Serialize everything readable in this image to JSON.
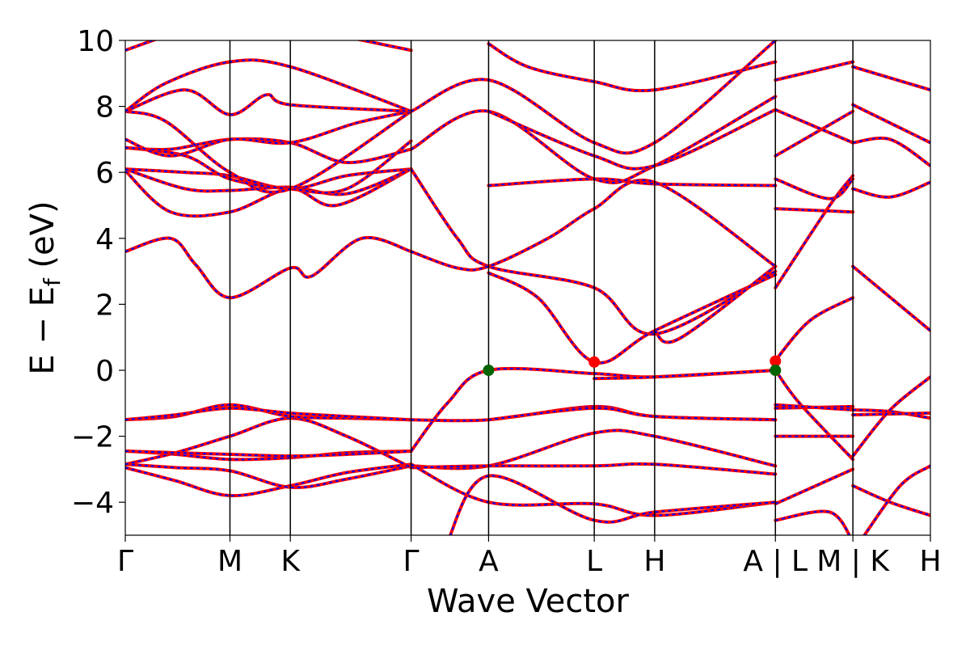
{
  "chart_data": {
    "type": "line",
    "xlabel": "Wave Vector",
    "ylabel_main": "E − E",
    "ylabel_sub": "f",
    "ylabel_unit": " (eV)",
    "ylim": [
      -5,
      10
    ],
    "xlim": [
      0,
      8.0
    ],
    "grid": false,
    "y_ticks": [
      {
        "v": -4,
        "label": "−4"
      },
      {
        "v": -2,
        "label": "−2"
      },
      {
        "v": 0,
        "label": "0"
      },
      {
        "v": 2,
        "label": "2"
      },
      {
        "v": 4,
        "label": "4"
      },
      {
        "v": 6,
        "label": "6"
      },
      {
        "v": 8,
        "label": "8"
      },
      {
        "v": 10,
        "label": "10"
      }
    ],
    "k_points": [
      {
        "x": 0.0,
        "label": "Γ"
      },
      {
        "x": 1.04,
        "label": "M"
      },
      {
        "x": 1.64,
        "label": "K"
      },
      {
        "x": 2.84,
        "label": "Γ"
      },
      {
        "x": 3.61,
        "label": "A"
      },
      {
        "x": 4.66,
        "label": "L"
      },
      {
        "x": 5.26,
        "label": "H"
      },
      {
        "x": 6.46,
        "label": "A | L"
      },
      {
        "x": 7.23,
        "label": "M | K"
      },
      {
        "x": 8.0,
        "label": "H"
      }
    ],
    "series_colors": {
      "solid": "#ff0000",
      "dashed": "#0000ff"
    },
    "series": [
      {
        "points": [
          [
            0,
            -2.95
          ],
          [
            0.5,
            -3.35
          ],
          [
            1.04,
            -3.8
          ],
          [
            1.64,
            -3.5
          ],
          [
            2.2,
            -3.1
          ],
          [
            2.84,
            -2.85
          ]
        ]
      },
      {
        "points": [
          [
            0,
            -2.85
          ],
          [
            0.5,
            -2.95
          ],
          [
            1.04,
            -3.05
          ],
          [
            1.64,
            -3.55
          ],
          [
            2.2,
            -3.3
          ],
          [
            2.84,
            -2.9
          ]
        ]
      },
      {
        "points": [
          [
            0,
            -2.85
          ],
          [
            0.5,
            -2.5
          ],
          [
            1.04,
            -2.0
          ],
          [
            1.64,
            -1.45
          ],
          [
            2.2,
            -2.0
          ],
          [
            2.84,
            -2.95
          ]
        ]
      },
      {
        "points": [
          [
            0,
            -2.45
          ],
          [
            0.5,
            -2.55
          ],
          [
            1.04,
            -2.7
          ],
          [
            1.64,
            -2.65
          ],
          [
            2.2,
            -2.5
          ],
          [
            2.84,
            -2.45
          ]
        ]
      },
      {
        "points": [
          [
            0,
            -2.45
          ],
          [
            0.5,
            -2.5
          ],
          [
            1.04,
            -2.55
          ],
          [
            1.64,
            -2.6
          ],
          [
            2.2,
            -2.55
          ],
          [
            2.84,
            -2.45
          ]
        ]
      },
      {
        "points": [
          [
            0,
            -1.5
          ],
          [
            0.5,
            -1.4
          ],
          [
            1.04,
            -1.05
          ],
          [
            1.64,
            -1.4
          ],
          [
            2.2,
            -1.45
          ],
          [
            2.84,
            -1.5
          ]
        ]
      },
      {
        "points": [
          [
            0,
            -1.5
          ],
          [
            0.5,
            -1.35
          ],
          [
            1.04,
            -1.15
          ],
          [
            1.64,
            -1.3
          ],
          [
            2.2,
            -1.4
          ],
          [
            2.84,
            -1.5
          ]
        ]
      },
      {
        "points": [
          [
            0,
            3.6
          ],
          [
            0.45,
            4.0
          ],
          [
            0.7,
            3.2
          ],
          [
            1.04,
            2.2
          ],
          [
            1.64,
            3.1
          ],
          [
            1.85,
            2.85
          ],
          [
            2.35,
            4.0
          ],
          [
            2.84,
            3.6
          ]
        ]
      },
      {
        "points": [
          [
            0,
            6.05
          ],
          [
            0.45,
            4.8
          ],
          [
            1.04,
            4.8
          ],
          [
            1.64,
            5.5
          ],
          [
            2.1,
            5.0
          ],
          [
            2.84,
            6.1
          ]
        ]
      },
      {
        "points": [
          [
            0,
            6.1
          ],
          [
            0.6,
            6.0
          ],
          [
            1.04,
            5.9
          ],
          [
            1.64,
            5.5
          ],
          [
            2.2,
            5.9
          ],
          [
            2.84,
            6.1
          ]
        ]
      },
      {
        "points": [
          [
            0,
            6.1
          ],
          [
            0.6,
            5.5
          ],
          [
            1.04,
            5.45
          ],
          [
            1.64,
            5.55
          ],
          [
            2.2,
            5.35
          ],
          [
            2.84,
            6.1
          ]
        ]
      },
      {
        "points": [
          [
            0,
            6.75
          ],
          [
            0.6,
            6.5
          ],
          [
            1.04,
            5.8
          ],
          [
            1.64,
            5.5
          ],
          [
            2.2,
            5.5
          ],
          [
            2.84,
            6.95
          ]
        ]
      },
      {
        "points": [
          [
            0,
            6.75
          ],
          [
            0.45,
            6.7
          ],
          [
            1.04,
            7.0
          ],
          [
            1.64,
            6.9
          ],
          [
            2.2,
            6.3
          ],
          [
            2.84,
            6.7
          ]
        ]
      },
      {
        "points": [
          [
            0,
            7.0
          ],
          [
            0.45,
            6.5
          ],
          [
            1.04,
            7.0
          ],
          [
            1.64,
            6.9
          ],
          [
            2.3,
            7.5
          ],
          [
            2.84,
            7.85
          ]
        ]
      },
      {
        "points": [
          [
            0,
            7.85
          ],
          [
            0.6,
            8.5
          ],
          [
            1.04,
            7.75
          ],
          [
            1.4,
            8.35
          ],
          [
            1.64,
            8.05
          ],
          [
            2.84,
            7.85
          ]
        ]
      },
      {
        "points": [
          [
            0,
            7.85
          ],
          [
            0.4,
            7.55
          ],
          [
            1.04,
            6.0
          ],
          [
            1.64,
            5.5
          ],
          [
            2.84,
            7.85
          ]
        ]
      },
      {
        "points": [
          [
            0,
            7.85
          ],
          [
            0.4,
            8.7
          ],
          [
            1.04,
            9.35
          ],
          [
            1.64,
            9.2
          ],
          [
            2.84,
            7.85
          ]
        ]
      },
      {
        "points": [
          [
            0,
            9.7
          ],
          [
            0.6,
            10.3
          ],
          [
            1.04,
            10.3
          ],
          [
            1.64,
            10.4
          ],
          [
            2.84,
            9.7
          ]
        ]
      },
      {
        "points": [
          [
            2.84,
            -2.45
          ],
          [
            3.2,
            -1.0
          ],
          [
            3.61,
            0.0
          ],
          [
            4.66,
            -0.1
          ],
          [
            5.26,
            -0.2
          ],
          [
            6.46,
            0.0
          ]
        ]
      },
      {
        "points": [
          [
            4.66,
            -0.25
          ],
          [
            5.26,
            -0.2
          ],
          [
            6.46,
            0.0
          ]
        ]
      },
      {
        "points": [
          [
            2.84,
            -1.5
          ],
          [
            3.61,
            -1.5
          ],
          [
            4.66,
            -1.1
          ],
          [
            5.26,
            -1.4
          ],
          [
            6.46,
            -1.5
          ]
        ]
      },
      {
        "points": [
          [
            3.61,
            -1.5
          ],
          [
            4.66,
            -1.15
          ],
          [
            5.26,
            -1.4
          ],
          [
            6.46,
            -1.5
          ]
        ]
      },
      {
        "points": [
          [
            2.84,
            -2.9
          ],
          [
            3.61,
            -2.9
          ],
          [
            4.66,
            -1.9
          ],
          [
            5.26,
            -2.0
          ],
          [
            6.46,
            -2.9
          ]
        ]
      },
      {
        "points": [
          [
            2.84,
            -2.95
          ],
          [
            3.61,
            -2.9
          ],
          [
            4.66,
            -2.9
          ],
          [
            5.26,
            -2.85
          ],
          [
            6.46,
            -3.15
          ]
        ]
      },
      {
        "points": [
          [
            2.84,
            -2.85
          ],
          [
            3.61,
            -4.0
          ],
          [
            4.66,
            -4.05
          ],
          [
            5.26,
            -4.4
          ],
          [
            6.46,
            -4.0
          ]
        ]
      },
      {
        "points": [
          [
            3.2,
            -5.2
          ],
          [
            3.61,
            -3.2
          ],
          [
            4.66,
            -4.55
          ],
          [
            5.26,
            -4.3
          ],
          [
            6.46,
            -4.0
          ]
        ]
      },
      {
        "points": [
          [
            2.84,
            6.1
          ],
          [
            3.3,
            4.0
          ],
          [
            3.61,
            3.15
          ],
          [
            4.66,
            2.5
          ],
          [
            5.26,
            1.1
          ],
          [
            6.46,
            3.0
          ]
        ]
      },
      {
        "points": [
          [
            3.61,
            2.95
          ],
          [
            4.1,
            2.2
          ],
          [
            4.66,
            0.25
          ],
          [
            5.26,
            1.2
          ],
          [
            6.46,
            2.9
          ]
        ]
      },
      {
        "points": [
          [
            5.26,
            1.2
          ],
          [
            5.5,
            0.95
          ],
          [
            6.46,
            3.15
          ]
        ]
      },
      {
        "points": [
          [
            2.84,
            3.6
          ],
          [
            3.3,
            3.1
          ],
          [
            3.61,
            3.15
          ],
          [
            4.2,
            4.0
          ],
          [
            4.66,
            4.9
          ],
          [
            5.26,
            5.7
          ],
          [
            6.46,
            3.15
          ]
        ]
      },
      {
        "points": [
          [
            3.61,
            5.6
          ],
          [
            4.66,
            5.8
          ],
          [
            5.26,
            5.65
          ],
          [
            6.46,
            5.6
          ]
        ]
      },
      {
        "points": [
          [
            2.84,
            6.7
          ],
          [
            3.61,
            7.85
          ],
          [
            4.66,
            5.8
          ],
          [
            5.26,
            6.2
          ],
          [
            6.46,
            8.3
          ]
        ]
      },
      {
        "points": [
          [
            3.61,
            7.85
          ],
          [
            4.66,
            6.5
          ],
          [
            5.26,
            6.2
          ],
          [
            6.46,
            7.9
          ]
        ]
      },
      {
        "points": [
          [
            2.84,
            7.85
          ],
          [
            3.61,
            8.8
          ],
          [
            4.66,
            6.9
          ],
          [
            5.26,
            6.9
          ],
          [
            6.46,
            10.0
          ]
        ]
      },
      {
        "points": [
          [
            3.61,
            9.9
          ],
          [
            4.0,
            9.2
          ],
          [
            4.66,
            8.75
          ],
          [
            5.26,
            8.5
          ],
          [
            6.46,
            9.35
          ]
        ]
      },
      {
        "points": [
          [
            6.46,
            0.0
          ],
          [
            6.7,
            -1.0
          ],
          [
            7.23,
            -2.7
          ]
        ]
      },
      {
        "points": [
          [
            6.46,
            0.3
          ],
          [
            6.8,
            1.5
          ],
          [
            7.23,
            2.2
          ]
        ]
      },
      {
        "points": [
          [
            6.46,
            2.5
          ],
          [
            7.0,
            5.0
          ],
          [
            7.23,
            5.9
          ]
        ]
      },
      {
        "points": [
          [
            6.46,
            -1.15
          ],
          [
            7.23,
            -1.1
          ]
        ]
      },
      {
        "points": [
          [
            6.46,
            -1.05
          ],
          [
            7.23,
            -1.2
          ]
        ]
      },
      {
        "points": [
          [
            6.46,
            -2.0
          ],
          [
            7.23,
            -2.0
          ]
        ]
      },
      {
        "points": [
          [
            6.46,
            -4.05
          ],
          [
            7.23,
            -3.0
          ]
        ]
      },
      {
        "points": [
          [
            6.46,
            -4.55
          ],
          [
            7.0,
            -4.3
          ],
          [
            7.23,
            -5.2
          ]
        ]
      },
      {
        "points": [
          [
            6.46,
            4.9
          ],
          [
            7.23,
            4.8
          ]
        ]
      },
      {
        "points": [
          [
            6.46,
            5.8
          ],
          [
            7.0,
            5.2
          ],
          [
            7.23,
            5.8
          ]
        ]
      },
      {
        "points": [
          [
            6.46,
            6.5
          ],
          [
            7.23,
            7.85
          ]
        ]
      },
      {
        "points": [
          [
            6.46,
            7.9
          ],
          [
            7.23,
            6.9
          ]
        ]
      },
      {
        "points": [
          [
            6.46,
            8.8
          ],
          [
            7.23,
            9.35
          ]
        ]
      },
      {
        "points": [
          [
            7.23,
            -1.2
          ],
          [
            7.6,
            -1.25
          ],
          [
            8.0,
            -1.45
          ]
        ]
      },
      {
        "points": [
          [
            7.23,
            -1.35
          ],
          [
            8.0,
            -1.3
          ]
        ]
      },
      {
        "points": [
          [
            7.23,
            -2.6
          ],
          [
            7.6,
            -1.2
          ],
          [
            8.0,
            -0.2
          ]
        ]
      },
      {
        "points": [
          [
            7.23,
            -3.5
          ],
          [
            7.6,
            -4.0
          ],
          [
            8.0,
            -4.4
          ]
        ]
      },
      {
        "points": [
          [
            7.3,
            -5.2
          ],
          [
            7.7,
            -3.5
          ],
          [
            8.0,
            -2.9
          ]
        ]
      },
      {
        "points": [
          [
            7.23,
            3.15
          ],
          [
            8.0,
            1.2
          ]
        ]
      },
      {
        "points": [
          [
            7.23,
            5.5
          ],
          [
            7.6,
            5.25
          ],
          [
            8.0,
            5.7
          ]
        ]
      },
      {
        "points": [
          [
            7.23,
            6.9
          ],
          [
            7.6,
            7.0
          ],
          [
            8.0,
            6.2
          ]
        ]
      },
      {
        "points": [
          [
            7.23,
            8.05
          ],
          [
            8.0,
            6.9
          ]
        ]
      },
      {
        "points": [
          [
            7.23,
            9.2
          ],
          [
            8.0,
            8.5
          ]
        ]
      }
    ],
    "markers": [
      {
        "x": 3.61,
        "y": 0.0,
        "color": "#006400"
      },
      {
        "x": 4.66,
        "y": 0.25,
        "color": "#ff0000"
      },
      {
        "x": 6.46,
        "y": 0.28,
        "color": "#ff0000"
      },
      {
        "x": 6.46,
        "y": 0.0,
        "color": "#006400"
      }
    ]
  }
}
